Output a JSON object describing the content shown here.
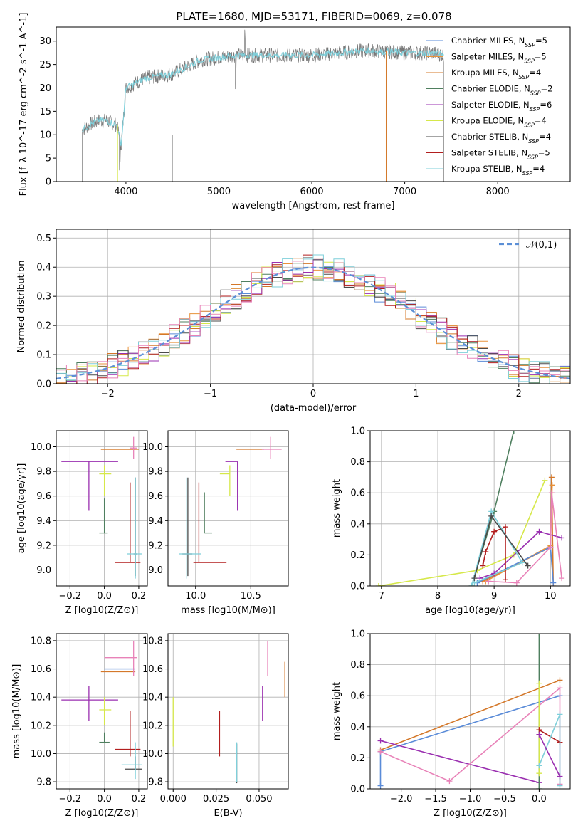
{
  "figure_title": "PLATE=1680, MJD=53171, FIBERID=0069, z=0.078",
  "colors": {
    "Chabrier MILES": "#5a8bd8",
    "Salpeter MILES": "#e8923a",
    "Kroupa MILES": "#d4782a",
    "Chabrier ELODIE": "#4f7f5f",
    "Salpeter ELODIE": "#9a2fb0",
    "Kroupa ELODIE": "#d6e84a",
    "Chabrier STELIB": "#4a4a4a",
    "Salpeter STELIB": "#b21e1e",
    "Kroupa STELIB": "#7ecfda",
    "pink": "#e882b8",
    "normal": "#5b8fd6"
  },
  "chart_data": [
    {
      "id": "spectrum",
      "type": "line",
      "title": "PLATE=1680, MJD=53171, FIBERID=0069, z=0.078",
      "xlabel": "wavelength [Angstrom, rest frame]",
      "ylabel": "Flux [f_λ 10^-17 erg cm^-2 s^-1 A^-1]",
      "xlim": [
        3250,
        8780
      ],
      "ylim": [
        0,
        33
      ],
      "xticks": [
        "4000",
        "5000",
        "6000",
        "7000",
        "8000"
      ],
      "yticks": [
        "0",
        "5",
        "10",
        "15",
        "20",
        "25",
        "30"
      ],
      "legend": [
        {
          "name": "Chabrier MILES",
          "nssp": "5"
        },
        {
          "name": "Salpeter MILES",
          "nssp": "5"
        },
        {
          "name": "Kroupa MILES",
          "nssp": "4"
        },
        {
          "name": "Chabrier ELODIE",
          "nssp": "2"
        },
        {
          "name": "Salpeter ELODIE",
          "nssp": "6"
        },
        {
          "name": "Kroupa ELODIE",
          "nssp": "4"
        },
        {
          "name": "Chabrier STELIB",
          "nssp": "4"
        },
        {
          "name": "Salpeter STELIB",
          "nssp": "5"
        },
        {
          "name": "Kroupa STELIB",
          "nssp": "4"
        }
      ],
      "continuum": [
        [
          3530,
          11
        ],
        [
          3600,
          12
        ],
        [
          3700,
          13
        ],
        [
          3800,
          13
        ],
        [
          3900,
          12
        ],
        [
          3950,
          8
        ],
        [
          4000,
          20
        ],
        [
          4200,
          22
        ],
        [
          4500,
          23
        ],
        [
          4800,
          26
        ],
        [
          5000,
          26.5
        ],
        [
          5200,
          27
        ],
        [
          5500,
          27
        ],
        [
          5800,
          27
        ],
        [
          6000,
          27
        ],
        [
          6300,
          27.5
        ],
        [
          6600,
          28
        ],
        [
          7000,
          27.5
        ],
        [
          7300,
          27.5
        ],
        [
          7420,
          27
        ]
      ]
    },
    {
      "id": "residuals",
      "type": "histogram",
      "xlabel": "(data-model)/error",
      "ylabel": "Normed distribution",
      "xlim": [
        -2.5,
        2.5
      ],
      "ylim": [
        0,
        0.53
      ],
      "xticks": [
        "−2",
        "−1",
        "0",
        "1",
        "2"
      ],
      "yticks": [
        "0.0",
        "0.1",
        "0.2",
        "0.3",
        "0.4",
        "0.5"
      ],
      "legend_label": "𝒩(0,1)",
      "normal": {
        "mean": 0,
        "sigma": 1
      },
      "bin_width": 0.1
    },
    {
      "id": "age-vs-Z",
      "type": "scatter",
      "xlabel": "Z [log10(Z/Z⊙)]",
      "ylabel": "age  [log10(age/yr)]",
      "xlim": [
        -0.28,
        0.25
      ],
      "ylim": [
        8.87,
        10.13
      ],
      "xticks": [
        "−0.2",
        "0.0",
        "0.2"
      ],
      "yticks": [
        "9.0",
        "9.2",
        "9.4",
        "9.6",
        "9.8",
        "10.0"
      ]
    },
    {
      "id": "age-vs-mass",
      "type": "scatter",
      "xlabel": "mass [log10(M/M⊙)]",
      "ylabel": "",
      "xlim": [
        9.75,
        10.84
      ],
      "ylim": [
        8.87,
        10.13
      ],
      "xticks": [
        "10.0",
        "10.5"
      ],
      "yticks": [
        "9.0",
        "9.2",
        "9.4",
        "9.6",
        "9.8",
        "10.0"
      ]
    },
    {
      "id": "weight-vs-age",
      "type": "line",
      "xlabel": "age  [log10(age/yr)]",
      "ylabel": "mass weight",
      "xlim": [
        6.8,
        10.35
      ],
      "ylim": [
        0,
        1
      ],
      "xticks": [
        "7",
        "8",
        "9",
        "10"
      ],
      "yticks": [
        "0.0",
        "0.2",
        "0.4",
        "0.6",
        "0.8",
        "1.0"
      ]
    },
    {
      "id": "mass-vs-Z",
      "type": "scatter",
      "xlabel": "Z [log10(Z/Z⊙)]",
      "ylabel": "mass [log10(M/M⊙)]",
      "xlim": [
        -0.28,
        0.25
      ],
      "ylim": [
        9.75,
        10.85
      ],
      "xticks": [
        "−0.2",
        "0.0",
        "0.2"
      ],
      "yticks": [
        "9.8",
        "10.0",
        "10.2",
        "10.4",
        "10.6",
        "10.8"
      ]
    },
    {
      "id": "mass-vs-ebv",
      "type": "scatter",
      "xlabel": "E(B-V)",
      "ylabel": "",
      "xlim": [
        -0.003,
        0.067
      ],
      "ylim": [
        9.75,
        10.85
      ],
      "xticks": [
        "0.000",
        "0.025",
        "0.050"
      ],
      "yticks": [
        "9.8",
        "10.0",
        "10.2",
        "10.4",
        "10.6",
        "10.8"
      ]
    },
    {
      "id": "weight-vs-Z",
      "type": "line",
      "xlabel": "Z [log10(Z/Z⊙)]",
      "ylabel": "mass weight",
      "xlim": [
        -2.45,
        0.45
      ],
      "ylim": [
        0,
        1
      ],
      "xticks": [
        "−2.0",
        "−1.5",
        "−1.0",
        "−0.5",
        "0.0"
      ],
      "yticks": [
        "0.0",
        "0.2",
        "0.4",
        "0.6",
        "0.8",
        "1.0"
      ]
    }
  ],
  "errorbars_ageZ": [
    {
      "c": "Salpeter ELODIE",
      "x": -0.09,
      "xe": [
        -0.25,
        0.08
      ],
      "y": 9.88,
      "ye": [
        9.48,
        9.88
      ]
    },
    {
      "c": "Salpeter MILES",
      "x": 0.1,
      "xe": [
        -0.02,
        0.18
      ],
      "y": 9.98,
      "ye": [
        9.98,
        9.98
      ]
    },
    {
      "c": "Kroupa MILES",
      "x": 0.1,
      "xe": [
        -0.02,
        0.2
      ],
      "y": 9.98,
      "ye": [
        9.98,
        9.98
      ]
    },
    {
      "c": "pink",
      "x": 0.17,
      "xe": [
        0.15,
        0.19
      ],
      "y": 9.99,
      "ye": [
        9.9,
        10.08
      ]
    },
    {
      "c": "Kroupa ELODIE",
      "x": 0.0,
      "xe": [
        -0.03,
        0.04
      ],
      "y": 9.78,
      "ye": [
        9.6,
        9.85
      ]
    },
    {
      "c": "Chabrier ELODIE",
      "x": 0.0,
      "xe": [
        -0.03,
        0.02
      ],
      "y": 9.3,
      "ye": [
        9.3,
        9.58
      ]
    },
    {
      "c": "Salpeter STELIB",
      "x": 0.15,
      "xe": [
        0.06,
        0.21
      ],
      "y": 9.06,
      "ye": [
        9.06,
        9.71
      ]
    },
    {
      "c": "Chabrier STELIB",
      "x": 0.18,
      "xe": [
        0.17,
        0.19
      ],
      "y": 9.13,
      "ye": [
        8.95,
        9.75
      ]
    },
    {
      "c": "Kroupa STELIB",
      "x": 0.18,
      "xe": [
        0.13,
        0.22
      ],
      "y": 9.13,
      "ye": [
        8.93,
        9.75
      ]
    }
  ],
  "errorbars_ageMass": [
    {
      "c": "Salpeter ELODIE",
      "x": 10.38,
      "xe": [
        10.27,
        10.38
      ],
      "y": 9.88,
      "ye": [
        9.48,
        9.88
      ]
    },
    {
      "c": "Kroupa MILES",
      "x": 10.58,
      "xe": [
        10.37,
        10.62
      ],
      "y": 9.98,
      "ye": [
        9.98,
        9.98
      ]
    },
    {
      "c": "pink",
      "x": 10.68,
      "xe": [
        10.6,
        10.78
      ],
      "y": 9.98,
      "ye": [
        9.9,
        10.08
      ]
    },
    {
      "c": "Kroupa ELODIE",
      "x": 10.31,
      "xe": [
        10.22,
        10.31
      ],
      "y": 9.78,
      "ye": [
        9.6,
        9.85
      ]
    },
    {
      "c": "Chabrier ELODIE",
      "x": 10.08,
      "xe": [
        10.08,
        10.15
      ],
      "y": 9.3,
      "ye": [
        9.3,
        9.63
      ]
    },
    {
      "c": "Salpeter STELIB",
      "x": 10.03,
      "xe": [
        9.98,
        10.28
      ],
      "y": 9.06,
      "ye": [
        9.06,
        9.71
      ]
    },
    {
      "c": "Chabrier STELIB",
      "x": 9.93,
      "xe": [
        9.88,
        9.97
      ],
      "y": 9.13,
      "ye": [
        8.95,
        9.75
      ]
    },
    {
      "c": "Kroupa STELIB",
      "x": 9.92,
      "xe": [
        9.85,
        10.05
      ],
      "y": 9.13,
      "ye": [
        8.93,
        9.75
      ]
    }
  ],
  "errorbars_massZ": [
    {
      "c": "Salpeter ELODIE",
      "x": -0.09,
      "xe": [
        -0.25,
        0.08
      ],
      "y": 10.38,
      "ye": [
        10.23,
        10.48
      ]
    },
    {
      "c": "Kroupa MILES",
      "x": 0.1,
      "xe": [
        -0.02,
        0.18
      ],
      "y": 10.58,
      "ye": [
        10.58,
        10.58
      ]
    },
    {
      "c": "Chabrier MILES",
      "x": 0.1,
      "xe": [
        -0.0,
        0.18
      ],
      "y": 10.6,
      "ye": [
        10.6,
        10.6
      ]
    },
    {
      "c": "pink",
      "x": 0.17,
      "xe": [
        0.0,
        0.19
      ],
      "y": 10.68,
      "ye": [
        10.55,
        10.8
      ]
    },
    {
      "c": "Kroupa ELODIE",
      "x": 0.0,
      "xe": [
        -0.03,
        0.04
      ],
      "y": 10.31,
      "ye": [
        10.2,
        10.4
      ]
    },
    {
      "c": "Chabrier ELODIE",
      "x": 0.0,
      "xe": [
        -0.03,
        0.03
      ],
      "y": 10.08,
      "ye": [
        10.08,
        10.15
      ]
    },
    {
      "c": "Salpeter STELIB",
      "x": 0.15,
      "xe": [
        0.06,
        0.21
      ],
      "y": 10.03,
      "ye": [
        9.98,
        10.3
      ]
    },
    {
      "c": "Chabrier STELIB",
      "x": 0.18,
      "xe": [
        0.12,
        0.22
      ],
      "y": 9.89,
      "ye": [
        9.89,
        9.98
      ]
    },
    {
      "c": "Kroupa STELIB",
      "x": 0.18,
      "xe": [
        0.1,
        0.22
      ],
      "y": 9.92,
      "ye": [
        9.82,
        10.08
      ]
    }
  ],
  "errorbars_massEbv": [
    {
      "c": "Kroupa ELODIE",
      "x": 0.0,
      "y": 10.25,
      "ye": [
        10.05,
        10.4
      ]
    },
    {
      "c": "Salpeter STELIB",
      "x": 0.027,
      "y": 10.1,
      "ye": [
        9.98,
        10.3
      ]
    },
    {
      "c": "Chabrier STELIB",
      "x": 0.037,
      "y": 9.92,
      "ye": [
        9.79,
        10.07
      ]
    },
    {
      "c": "Kroupa STELIB",
      "x": 0.037,
      "y": 9.93,
      "ye": [
        9.8,
        10.08
      ]
    },
    {
      "c": "Salpeter ELODIE",
      "x": 0.052,
      "y": 10.38,
      "ye": [
        10.23,
        10.48
      ]
    },
    {
      "c": "pink",
      "x": 0.055,
      "y": 10.68,
      "ye": [
        10.55,
        10.8
      ]
    },
    {
      "c": "Kroupa MILES",
      "x": 0.065,
      "y": 10.5,
      "ye": [
        10.4,
        10.65
      ]
    }
  ],
  "weight_age_series": [
    {
      "c": "Kroupa ELODIE",
      "pts": [
        [
          6.95,
          0.0
        ],
        [
          8.7,
          0.1
        ],
        [
          9.35,
          0.2
        ],
        [
          9.9,
          0.68
        ]
      ]
    },
    {
      "c": "Chabrier ELODIE",
      "pts": [
        [
          8.6,
          0.0
        ],
        [
          9.0,
          0.48
        ],
        [
          9.35,
          1.0
        ]
      ]
    },
    {
      "c": "Kroupa MILES",
      "pts": [
        [
          8.8,
          0.03
        ],
        [
          10.0,
          0.25
        ],
        [
          10.02,
          0.7
        ],
        [
          10.05,
          0.0
        ]
      ]
    },
    {
      "c": "Salpeter MILES",
      "pts": [
        [
          8.85,
          0.03
        ],
        [
          10.0,
          0.26
        ],
        [
          10.03,
          0.65
        ]
      ]
    },
    {
      "c": "Chabrier MILES",
      "pts": [
        [
          8.7,
          0.02
        ],
        [
          10.0,
          0.25
        ],
        [
          10.05,
          0.02
        ]
      ]
    },
    {
      "c": "Salpeter ELODIE",
      "pts": [
        [
          8.75,
          0.05
        ],
        [
          9.0,
          0.08
        ],
        [
          9.8,
          0.35
        ],
        [
          10.2,
          0.31
        ]
      ]
    },
    {
      "c": "Salpeter STELIB",
      "pts": [
        [
          8.8,
          0.13
        ],
        [
          8.85,
          0.22
        ],
        [
          9.0,
          0.35
        ],
        [
          9.2,
          0.38
        ],
        [
          9.2,
          0.04
        ]
      ]
    },
    {
      "c": "pink",
      "pts": [
        [
          8.9,
          0.03
        ],
        [
          9.4,
          0.02
        ],
        [
          10.0,
          0.25
        ],
        [
          10.02,
          0.6
        ],
        [
          10.2,
          0.05
        ]
      ]
    },
    {
      "c": "Kroupa STELIB",
      "pts": [
        [
          8.6,
          0.0
        ],
        [
          8.95,
          0.48
        ],
        [
          9.5,
          0.15
        ],
        [
          8.65,
          0.02
        ]
      ]
    },
    {
      "c": "Chabrier STELIB",
      "pts": [
        [
          8.65,
          0.05
        ],
        [
          8.95,
          0.45
        ],
        [
          9.6,
          0.13
        ]
      ]
    }
  ],
  "weight_Z_series": [
    {
      "c": "Chabrier MILES",
      "pts": [
        [
          -2.3,
          0.02
        ],
        [
          -2.3,
          0.24
        ],
        [
          0.3,
          0.6
        ]
      ]
    },
    {
      "c": "Kroupa MILES",
      "pts": [
        [
          -2.3,
          0.25
        ],
        [
          0.3,
          0.7
        ]
      ]
    },
    {
      "c": "Salpeter ELODIE",
      "pts": [
        [
          -2.3,
          0.31
        ],
        [
          0.0,
          0.04
        ]
      ]
    },
    {
      "c": "pink",
      "pts": [
        [
          -2.3,
          0.24
        ],
        [
          -1.3,
          0.05
        ],
        [
          0.3,
          0.65
        ],
        [
          0.3,
          0.03
        ]
      ]
    },
    {
      "c": "Chabrier ELODIE",
      "pts": [
        [
          0.0,
          0.0
        ],
        [
          0.0,
          1.0
        ]
      ]
    },
    {
      "c": "Kroupa ELODIE",
      "pts": [
        [
          0.0,
          0.1
        ],
        [
          0.0,
          0.68
        ]
      ]
    },
    {
      "c": "Salpeter STELIB",
      "pts": [
        [
          0.0,
          0.38
        ],
        [
          0.3,
          0.3
        ]
      ]
    },
    {
      "c": "Kroupa STELIB",
      "pts": [
        [
          0.0,
          0.15
        ],
        [
          0.3,
          0.48
        ],
        [
          0.3,
          0.02
        ]
      ]
    },
    {
      "c": "Salpeter ELODIE",
      "pts": [
        [
          0.0,
          0.35
        ],
        [
          0.3,
          0.08
        ]
      ]
    }
  ]
}
